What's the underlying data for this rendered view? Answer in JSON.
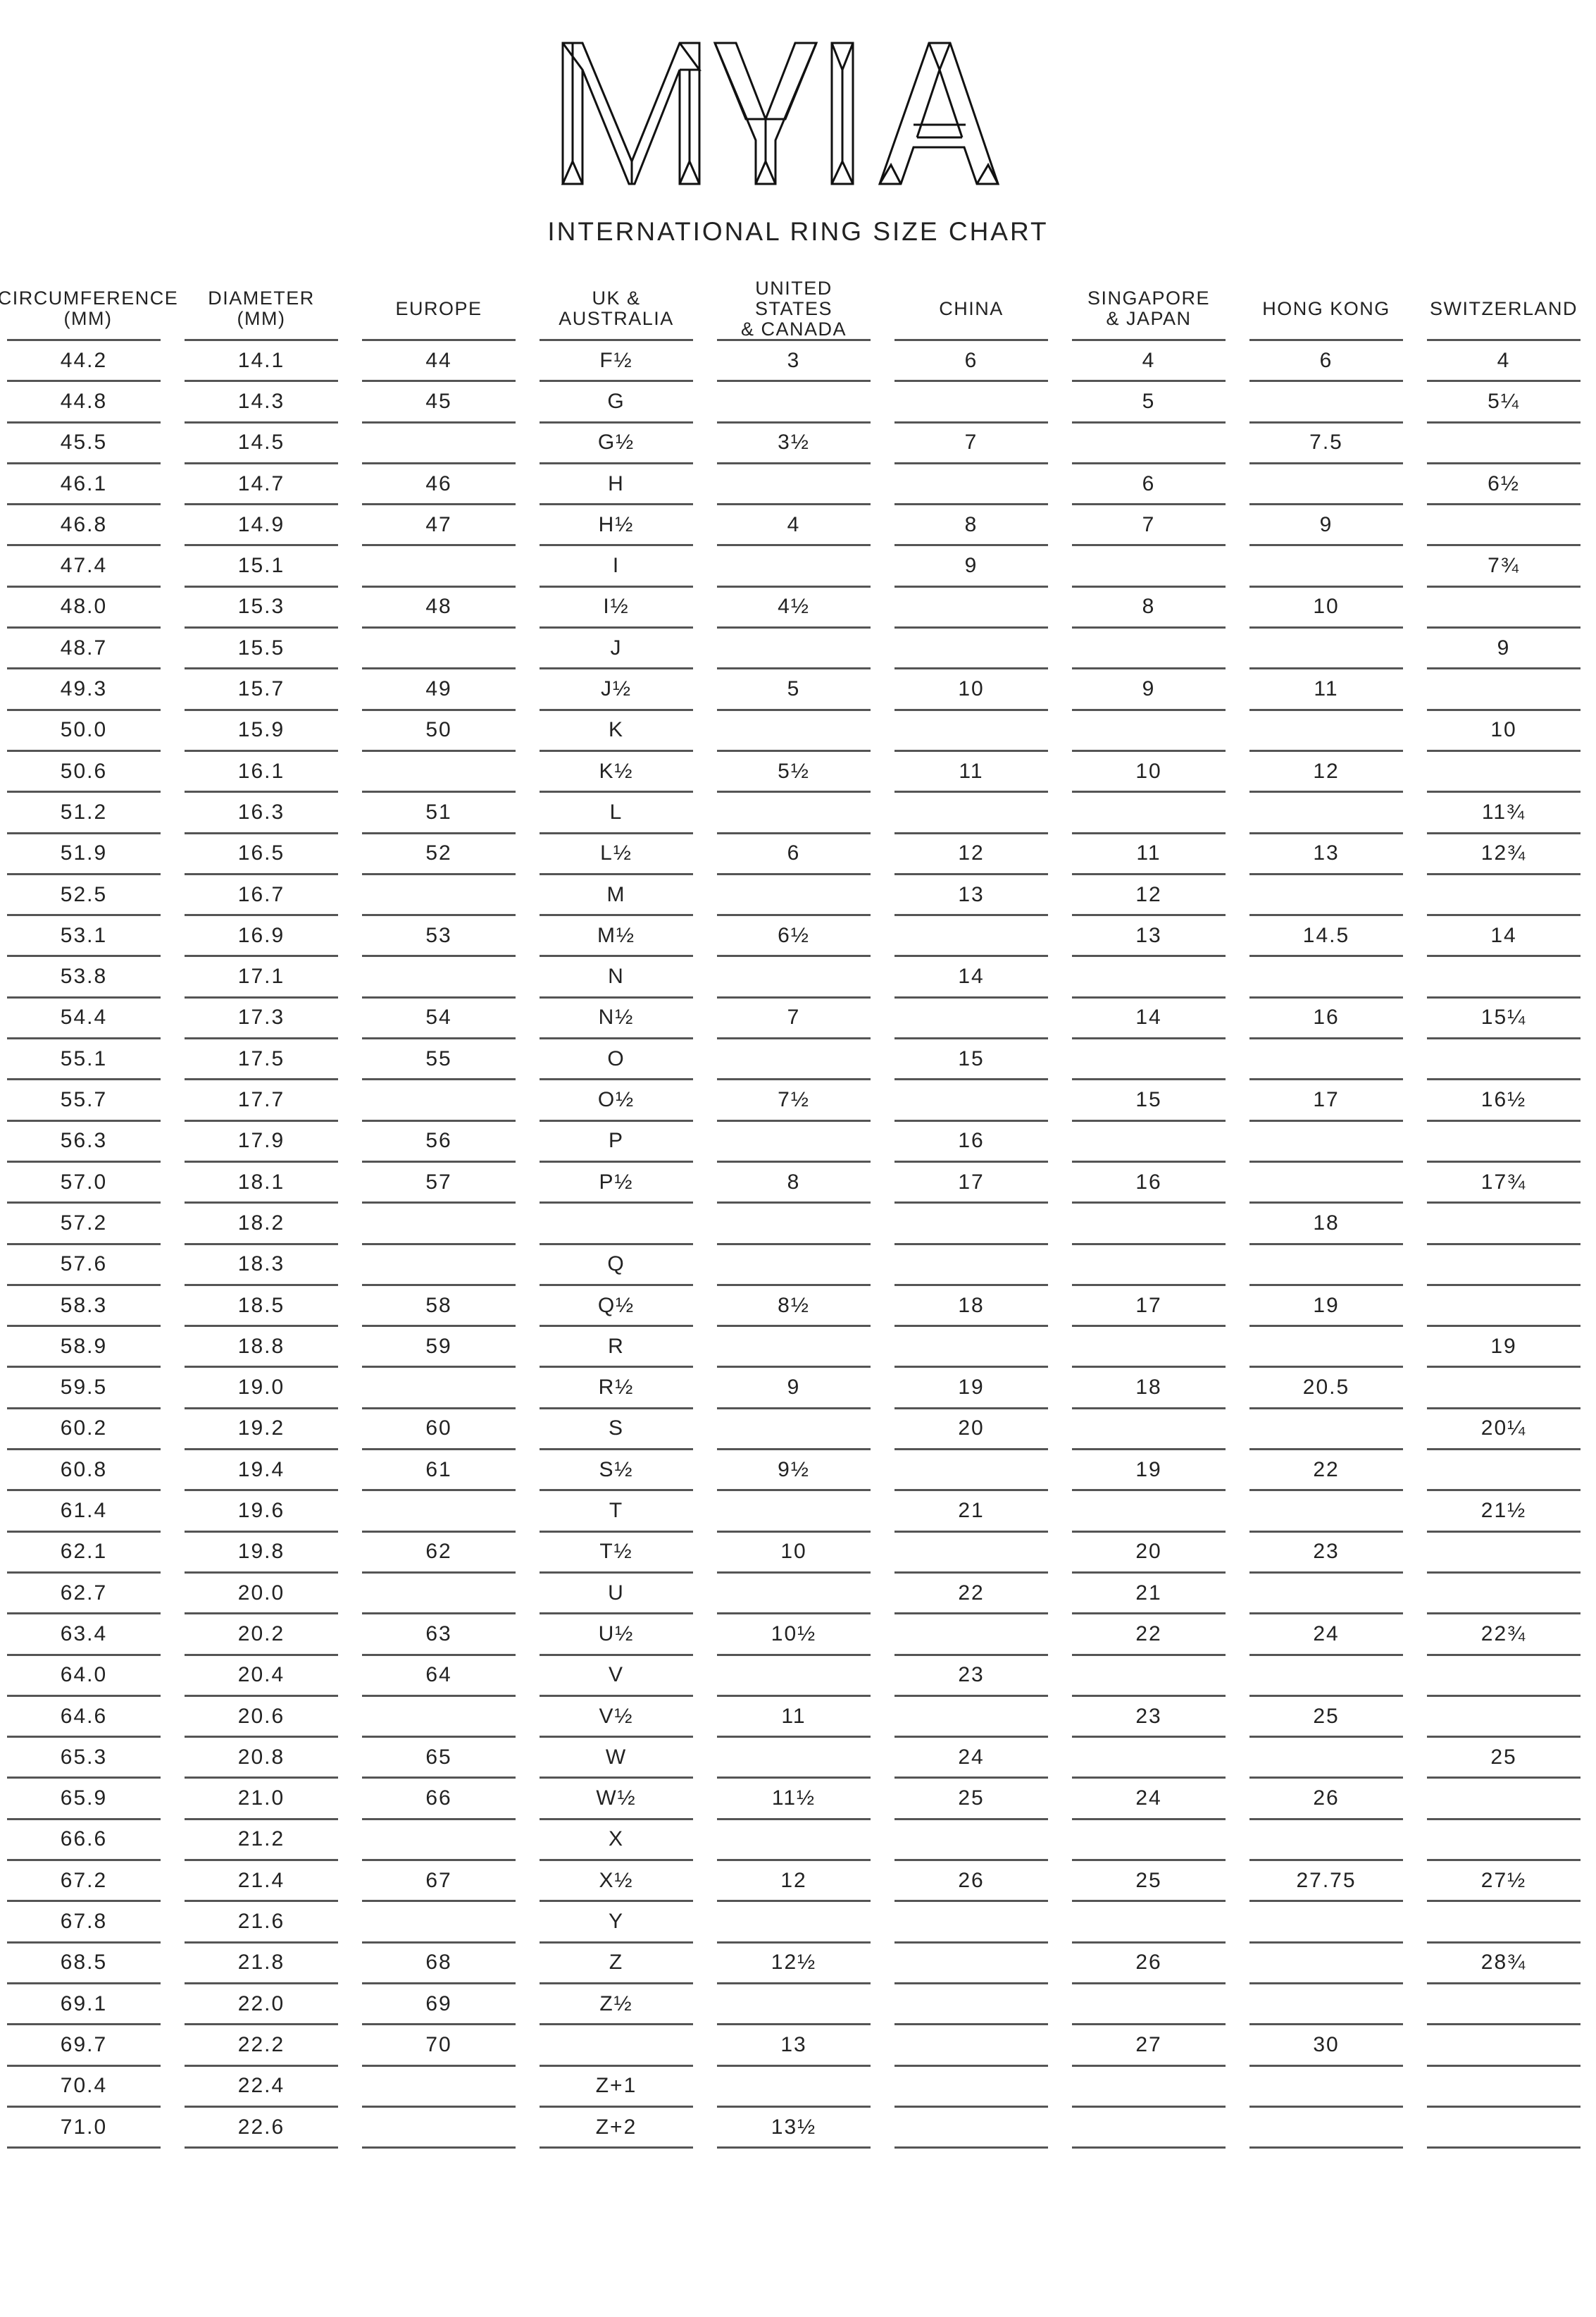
{
  "brand": {
    "logo_text": "MYIA"
  },
  "title": "INTERNATIONAL RING SIZE CHART",
  "table": {
    "headers": [
      "CIRCUMFERENCE\n(MM)",
      "DIAMETER\n(MM)",
      "EUROPE",
      "UK &\nAUSTRALIA",
      "UNITED STATES\n& CANADA",
      "CHINA",
      "SINGAPORE\n& JAPAN",
      "HONG KONG",
      "SWITZERLAND"
    ],
    "rows": [
      [
        "44.2",
        "14.1",
        "44",
        "F½",
        "3",
        "6",
        "4",
        "6",
        "4"
      ],
      [
        "44.8",
        "14.3",
        "45",
        "G",
        "",
        "",
        "5",
        "",
        "5¼"
      ],
      [
        "45.5",
        "14.5",
        "",
        "G½",
        "3½",
        "7",
        "",
        "7.5",
        ""
      ],
      [
        "46.1",
        "14.7",
        "46",
        "H",
        "",
        "",
        "6",
        "",
        "6½"
      ],
      [
        "46.8",
        "14.9",
        "47",
        "H½",
        "4",
        "8",
        "7",
        "9",
        ""
      ],
      [
        "47.4",
        "15.1",
        "",
        "I",
        "",
        "9",
        "",
        "",
        "7¾"
      ],
      [
        "48.0",
        "15.3",
        "48",
        "I½",
        "4½",
        "",
        "8",
        "10",
        ""
      ],
      [
        "48.7",
        "15.5",
        "",
        "J",
        "",
        "",
        "",
        "",
        "9"
      ],
      [
        "49.3",
        "15.7",
        "49",
        "J½",
        "5",
        "10",
        "9",
        "11",
        ""
      ],
      [
        "50.0",
        "15.9",
        "50",
        "K",
        "",
        "",
        "",
        "",
        "10"
      ],
      [
        "50.6",
        "16.1",
        "",
        "K½",
        "5½",
        "11",
        "10",
        "12",
        ""
      ],
      [
        "51.2",
        "16.3",
        "51",
        "L",
        "",
        "",
        "",
        "",
        "11¾"
      ],
      [
        "51.9",
        "16.5",
        "52",
        "L½",
        "6",
        "12",
        "11",
        "13",
        "12¾"
      ],
      [
        "52.5",
        "16.7",
        "",
        "M",
        "",
        "13",
        "12",
        "",
        ""
      ],
      [
        "53.1",
        "16.9",
        "53",
        "M½",
        "6½",
        "",
        "13",
        "14.5",
        "14"
      ],
      [
        "53.8",
        "17.1",
        "",
        "N",
        "",
        "14",
        "",
        "",
        ""
      ],
      [
        "54.4",
        "17.3",
        "54",
        "N½",
        "7",
        "",
        "14",
        "16",
        "15¼"
      ],
      [
        "55.1",
        "17.5",
        "55",
        "O",
        "",
        "15",
        "",
        "",
        ""
      ],
      [
        "55.7",
        "17.7",
        "",
        "O½",
        "7½",
        "",
        "15",
        "17",
        "16½"
      ],
      [
        "56.3",
        "17.9",
        "56",
        "P",
        "",
        "16",
        "",
        "",
        ""
      ],
      [
        "57.0",
        "18.1",
        "57",
        "P½",
        "8",
        "17",
        "16",
        "",
        "17¾"
      ],
      [
        "57.2",
        "18.2",
        "",
        "",
        "",
        "",
        "",
        "18",
        ""
      ],
      [
        "57.6",
        "18.3",
        "",
        "Q",
        "",
        "",
        "",
        "",
        ""
      ],
      [
        "58.3",
        "18.5",
        "58",
        "Q½",
        "8½",
        "18",
        "17",
        "19",
        ""
      ],
      [
        "58.9",
        "18.8",
        "59",
        "R",
        "",
        "",
        "",
        "",
        "19"
      ],
      [
        "59.5",
        "19.0",
        "",
        "R½",
        "9",
        "19",
        "18",
        "20.5",
        ""
      ],
      [
        "60.2",
        "19.2",
        "60",
        "S",
        "",
        "20",
        "",
        "",
        "20¼"
      ],
      [
        "60.8",
        "19.4",
        "61",
        "S½",
        "9½",
        "",
        "19",
        "22",
        ""
      ],
      [
        "61.4",
        "19.6",
        "",
        "T",
        "",
        "21",
        "",
        "",
        "21½"
      ],
      [
        "62.1",
        "19.8",
        "62",
        "T½",
        "10",
        "",
        "20",
        "23",
        ""
      ],
      [
        "62.7",
        "20.0",
        "",
        "U",
        "",
        "22",
        "21",
        "",
        ""
      ],
      [
        "63.4",
        "20.2",
        "63",
        "U½",
        "10½",
        "",
        "22",
        "24",
        "22¾"
      ],
      [
        "64.0",
        "20.4",
        "64",
        "V",
        "",
        "23",
        "",
        "",
        ""
      ],
      [
        "64.6",
        "20.6",
        "",
        "V½",
        "11",
        "",
        "23",
        "25",
        ""
      ],
      [
        "65.3",
        "20.8",
        "65",
        "W",
        "",
        "24",
        "",
        "",
        "25"
      ],
      [
        "65.9",
        "21.0",
        "66",
        "W½",
        "11½",
        "25",
        "24",
        "26",
        ""
      ],
      [
        "66.6",
        "21.2",
        "",
        "X",
        "",
        "",
        "",
        "",
        ""
      ],
      [
        "67.2",
        "21.4",
        "67",
        "X½",
        "12",
        "26",
        "25",
        "27.75",
        "27½"
      ],
      [
        "67.8",
        "21.6",
        "",
        "Y",
        "",
        "",
        "",
        "",
        ""
      ],
      [
        "68.5",
        "21.8",
        "68",
        "Z",
        "12½",
        "",
        "26",
        "",
        "28¾"
      ],
      [
        "69.1",
        "22.0",
        "69",
        "Z½",
        "",
        "",
        "",
        "",
        ""
      ],
      [
        "69.7",
        "22.2",
        "70",
        "",
        "13",
        "",
        "27",
        "30",
        ""
      ],
      [
        "70.4",
        "22.4",
        "",
        "Z+1",
        "",
        "",
        "",
        "",
        ""
      ],
      [
        "71.0",
        "22.6",
        "",
        "Z+2",
        "13½",
        "",
        "",
        "",
        ""
      ]
    ]
  }
}
